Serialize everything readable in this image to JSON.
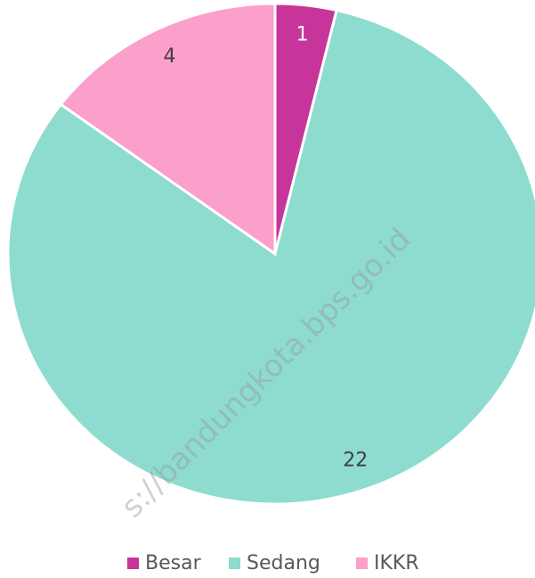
{
  "chart_data": {
    "type": "pie",
    "categories": [
      "Besar",
      "Sedang",
      "IKKR"
    ],
    "values": [
      1,
      22,
      4
    ],
    "colors": [
      "#c7359a",
      "#8ddccf",
      "#fb9fcb"
    ],
    "label_colors": [
      "#ffffff",
      "#404040",
      "#404040"
    ],
    "legend": "bottom",
    "watermark": "s://bandungkota.bps.go.id"
  }
}
